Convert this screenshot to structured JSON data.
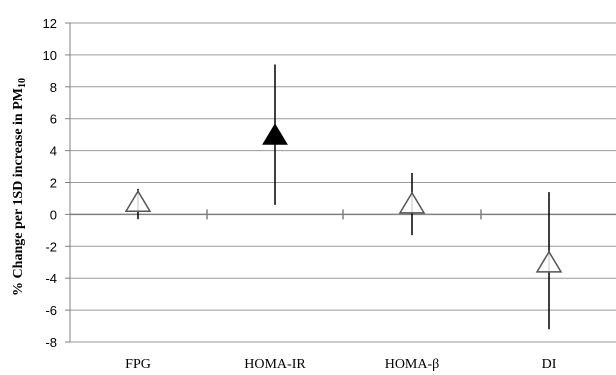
{
  "chart_data": {
    "type": "scatter",
    "ylabel_main": "% Change per 1SD increase in PM",
    "ylabel_sub": "10",
    "xlabel": "",
    "categories": [
      "FPG",
      "HOMA-IR",
      "HOMA-β",
      "DI"
    ],
    "y_ticks": [
      "12",
      "10",
      "8",
      "6",
      "4",
      "2",
      "0",
      "-2",
      "-4",
      "-6",
      "-8"
    ],
    "ylim": [
      -8,
      12
    ],
    "grid": true,
    "points": [
      {
        "category": "FPG",
        "estimate": 0.7,
        "ci_low": -0.3,
        "ci_high": 1.6,
        "marker": "open-triangle"
      },
      {
        "category": "HOMA-IR",
        "estimate": 4.9,
        "ci_low": 0.6,
        "ci_high": 9.4,
        "marker": "filled-triangle"
      },
      {
        "category": "HOMA-β",
        "estimate": 0.6,
        "ci_low": -1.3,
        "ci_high": 2.6,
        "marker": "open-triangle"
      },
      {
        "category": "DI",
        "estimate": -3.1,
        "ci_low": -7.2,
        "ci_high": 1.4,
        "marker": "open-triangle"
      }
    ],
    "colors": {
      "grid": "#9a9a9a",
      "axis": "#808080",
      "marker_fill": "#000000",
      "marker_open": "#ffffff",
      "errorbar": "#000000"
    }
  }
}
